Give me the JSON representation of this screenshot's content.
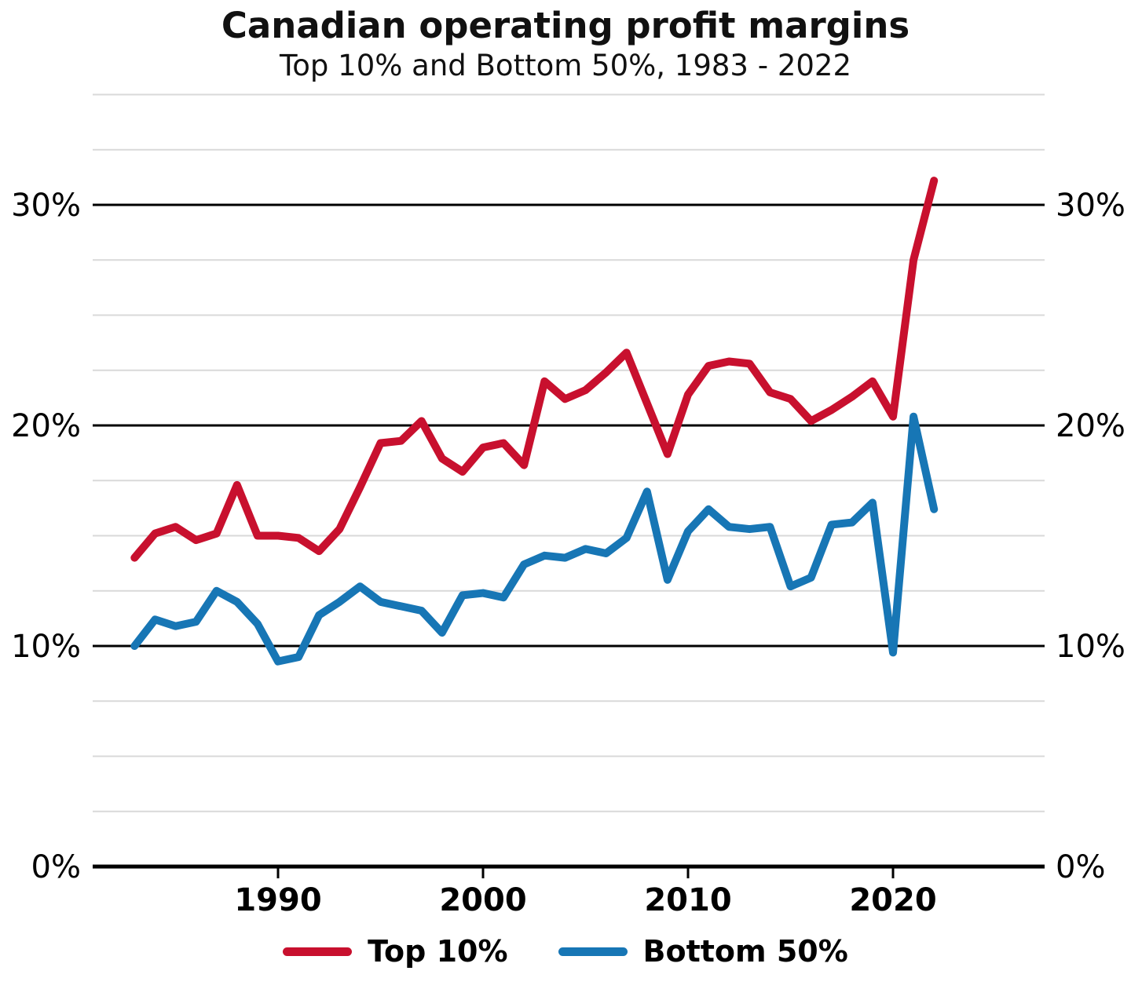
{
  "page": {
    "title": "Canadian operating profit margins",
    "subtitle": "Top 10% and Bottom 50%, 1983 - 2022"
  },
  "colors": {
    "top10_red": "#c8102e",
    "bottom50_blue": "#1776b5",
    "grid_minor": "#d9d9d9",
    "grid_major": "#000000",
    "axis_black": "#000000",
    "text": "#000000",
    "background": "#ffffff"
  },
  "legend": {
    "items": [
      {
        "label": "Top 10%",
        "color_key": "top10_red"
      },
      {
        "label": "Bottom 50%",
        "color_key": "bottom50_blue"
      }
    ]
  },
  "chart_data": {
    "type": "line",
    "title": "Canadian operating profit margins",
    "subtitle": "Top 10% and Bottom 50%, 1983 - 2022",
    "x_years": [
      1983,
      1984,
      1985,
      1986,
      1987,
      1988,
      1989,
      1990,
      1991,
      1992,
      1993,
      1994,
      1995,
      1996,
      1997,
      1998,
      1999,
      2000,
      2001,
      2002,
      2003,
      2004,
      2005,
      2006,
      2007,
      2008,
      2009,
      2010,
      2011,
      2012,
      2013,
      2014,
      2015,
      2016,
      2017,
      2018,
      2019,
      2020,
      2021,
      2022
    ],
    "series": [
      {
        "name": "Top 10%",
        "color_key": "top10_red",
        "values": [
          14.0,
          15.1,
          15.4,
          14.8,
          15.1,
          17.3,
          15.0,
          15.0,
          14.9,
          14.3,
          15.3,
          17.2,
          19.2,
          19.3,
          20.2,
          18.5,
          17.9,
          19.0,
          19.2,
          18.2,
          22.0,
          21.2,
          21.6,
          22.4,
          23.3,
          21.0,
          18.7,
          21.4,
          22.7,
          22.9,
          22.8,
          21.5,
          21.2,
          20.2,
          20.7,
          21.3,
          22.0,
          20.4,
          27.5,
          31.1
        ]
      },
      {
        "name": "Bottom 50%",
        "color_key": "bottom50_blue",
        "values": [
          10.0,
          11.2,
          10.9,
          11.1,
          12.5,
          12.0,
          11.0,
          9.3,
          9.5,
          11.4,
          12.0,
          12.7,
          12.0,
          11.8,
          11.6,
          10.6,
          12.3,
          12.4,
          12.2,
          13.7,
          14.1,
          14.0,
          14.4,
          14.2,
          14.9,
          17.0,
          13.0,
          15.2,
          16.2,
          15.4,
          15.3,
          15.4,
          12.7,
          13.1,
          15.5,
          15.6,
          16.5,
          9.7,
          20.4,
          16.2
        ]
      }
    ],
    "units": "%",
    "ylim": [
      0,
      35
    ],
    "yticks_major": [
      0,
      10,
      20,
      30
    ],
    "ytick_labels": [
      "0%",
      "10%",
      "20%",
      "30%"
    ],
    "yticks_minor": [
      2.5,
      5,
      7.5,
      12.5,
      15,
      17.5,
      22.5,
      25,
      27.5,
      32.5,
      35
    ],
    "xticks": [
      1990,
      2000,
      2010,
      2020
    ],
    "xtick_labels": [
      "1990",
      "2000",
      "2010",
      "2020"
    ],
    "grid": true,
    "y_labels_both_sides": true,
    "legend_position": "bottom-center"
  }
}
